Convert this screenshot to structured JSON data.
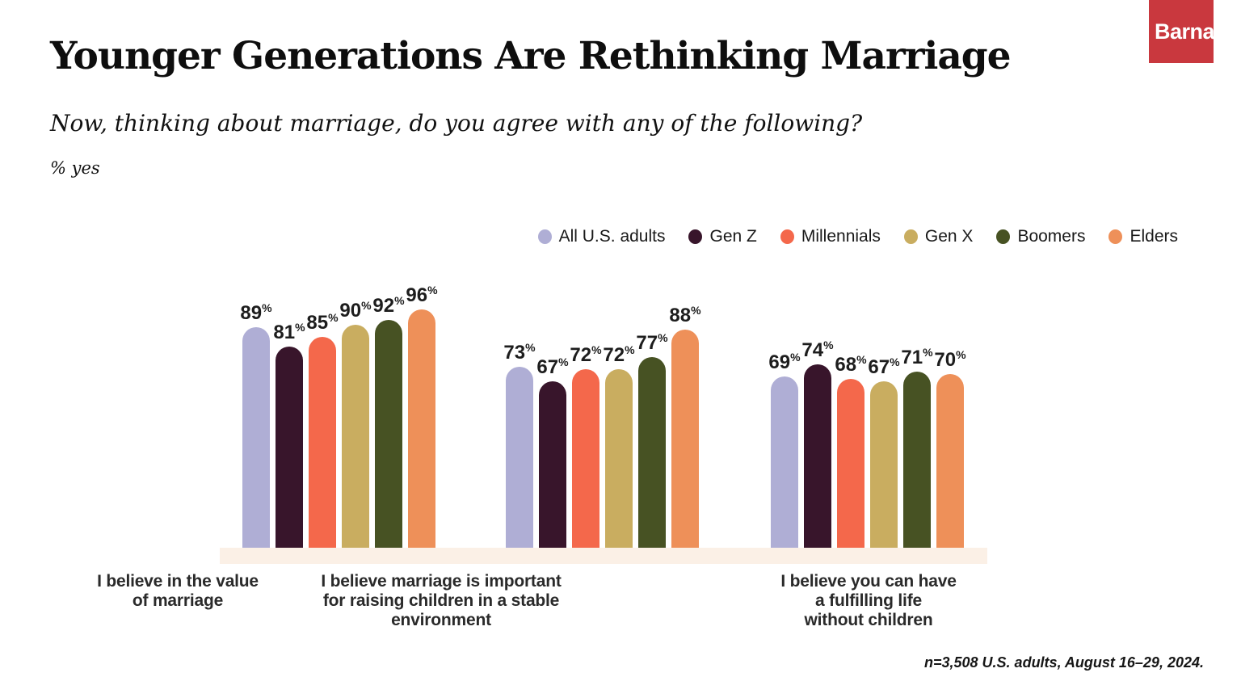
{
  "brand": {
    "logo_text": "Barna",
    "logo_bg": "#C9383E"
  },
  "header": {
    "title": "Younger Generations Are Rethinking Marriage",
    "subtitle": "Now, thinking about marriage, do you agree with any of the following?",
    "unit_note": "% yes"
  },
  "footnote": "n=3,508 U.S. adults, August 16–29, 2024.",
  "chart_data": {
    "type": "bar",
    "title": "Younger Generations Are Rethinking Marriage",
    "subtitle": "Now, thinking about marriage, do you agree with any of the following?",
    "unit": "% yes",
    "value_suffix": "%",
    "ylim": [
      0,
      100
    ],
    "grid": false,
    "legend_position": "top-right",
    "baseline_strip_color": "#FBF0E6",
    "categories": [
      "I believe in the value\nof marriage",
      "I believe marriage is important\nfor raising children in a stable\nenvironment",
      "I believe you can have\na fulfilling life\nwithout children"
    ],
    "series": [
      {
        "name": "All U.S. adults",
        "color": "#AFAED5",
        "values": [
          89,
          73,
          69
        ]
      },
      {
        "name": "Gen Z",
        "color": "#38152B",
        "values": [
          81,
          67,
          74
        ]
      },
      {
        "name": "Millennials",
        "color": "#F4684B",
        "values": [
          85,
          72,
          68
        ]
      },
      {
        "name": "Gen X",
        "color": "#C9AD60",
        "values": [
          90,
          72,
          67
        ]
      },
      {
        "name": "Boomers",
        "color": "#475223",
        "values": [
          92,
          77,
          71
        ]
      },
      {
        "name": "Elders",
        "color": "#EE9059",
        "values": [
          96,
          88,
          70
        ]
      }
    ]
  }
}
